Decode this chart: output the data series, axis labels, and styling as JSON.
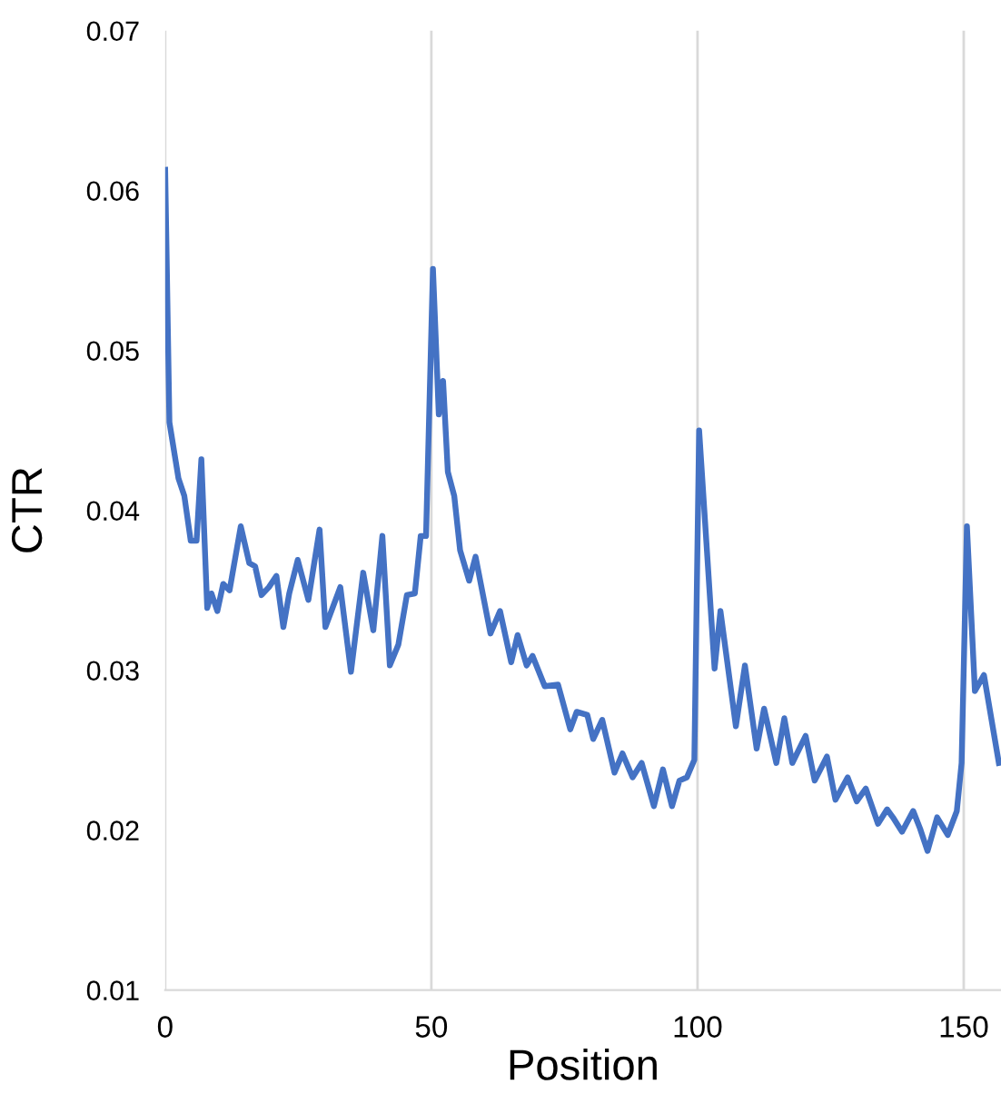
{
  "chart_data": {
    "type": "line",
    "xlabel": "Position",
    "ylabel": "CTR",
    "x": [
      0,
      0.8,
      2.5,
      3.6,
      4.8,
      5.9,
      6.8,
      7.9,
      8.7,
      9.8,
      10.9,
      12.1,
      14.2,
      15.8,
      16.9,
      18.1,
      19.5,
      20.9,
      22.2,
      23.3,
      24.9,
      26.9,
      29.0,
      30.1,
      32.9,
      34.9,
      37.2,
      39.1,
      40.8,
      42.2,
      43.8,
      45.4,
      46.9,
      48.0,
      49.0,
      50.3,
      51.4,
      52.2,
      53.1,
      54.3,
      55.4,
      57.1,
      58.3,
      61.1,
      62.9,
      65.0,
      66.2,
      67.9,
      69.0,
      71.3,
      73.8,
      76.1,
      77.3,
      79.3,
      80.4,
      82.1,
      84.4,
      85.9,
      87.8,
      89.5,
      91.8,
      93.5,
      95.2,
      96.6,
      98.0,
      99.4,
      100.3,
      103.2,
      104.3,
      107.2,
      108.9,
      111.1,
      112.5,
      114.8,
      116.3,
      117.8,
      120.3,
      122.0,
      124.3,
      125.9,
      128.2,
      129.9,
      131.6,
      133.9,
      135.6,
      136.7,
      138.4,
      140.5,
      141.8,
      143.2,
      145.0,
      147.0,
      148.7,
      149.6,
      150.6,
      152.1,
      153.8,
      156.6
    ],
    "series": [
      {
        "color": "#4472c4",
        "values": [
          0.0613,
          0.0455,
          0.042,
          0.0409,
          0.0381,
          0.0381,
          0.0432,
          0.0339,
          0.0348,
          0.0337,
          0.0354,
          0.035,
          0.039,
          0.0367,
          0.0365,
          0.0347,
          0.0352,
          0.0359,
          0.0327,
          0.0348,
          0.0369,
          0.0344,
          0.0388,
          0.0327,
          0.0352,
          0.0299,
          0.0361,
          0.0325,
          0.0384,
          0.0303,
          0.0316,
          0.0347,
          0.0348,
          0.0384,
          0.0384,
          0.0551,
          0.046,
          0.0481,
          0.0424,
          0.0409,
          0.0375,
          0.0356,
          0.0371,
          0.0323,
          0.0337,
          0.0305,
          0.0322,
          0.0303,
          0.0309,
          0.029,
          0.0291,
          0.0263,
          0.0274,
          0.0272,
          0.0257,
          0.0269,
          0.0236,
          0.0248,
          0.0233,
          0.0242,
          0.0215,
          0.0238,
          0.0215,
          0.0231,
          0.0233,
          0.0244,
          0.045,
          0.0301,
          0.0337,
          0.0265,
          0.0303,
          0.0251,
          0.0276,
          0.0242,
          0.027,
          0.0242,
          0.0259,
          0.0231,
          0.0246,
          0.0219,
          0.0233,
          0.0218,
          0.0226,
          0.0204,
          0.0213,
          0.0208,
          0.0199,
          0.0212,
          0.0201,
          0.0187,
          0.0208,
          0.0197,
          0.0212,
          0.0242,
          0.039,
          0.0287,
          0.0297,
          0.0242
        ]
      }
    ],
    "xlim": [
      0,
      157
    ],
    "xticks": [
      0,
      50,
      100,
      150
    ],
    "ylim": [
      0.01,
      0.07
    ],
    "yticks": [
      0.01,
      0.02,
      0.03,
      0.04,
      0.05,
      0.06,
      0.07
    ],
    "grid": "x",
    "marker": "none",
    "line_style": "solid"
  }
}
